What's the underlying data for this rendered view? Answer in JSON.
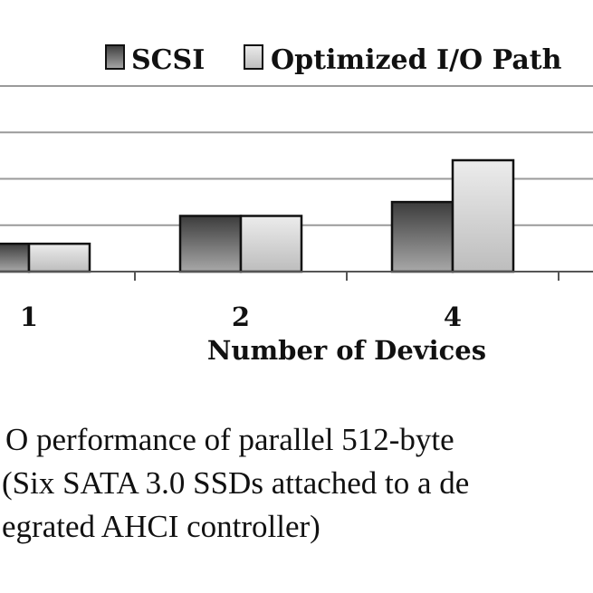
{
  "chart_data": {
    "type": "bar",
    "categories": [
      "1",
      "2",
      "4"
    ],
    "series": [
      {
        "name": "SCSI",
        "values": [
          0.6,
          1.2,
          1.5
        ],
        "color": "#6f6f6f"
      },
      {
        "name": "Optimized I/O Path",
        "values": [
          0.6,
          1.2,
          2.4
        ],
        "color": "#d9d9d9"
      }
    ],
    "xlabel": "Number of Devices",
    "ylim": [
      0,
      4
    ],
    "grid": true,
    "legend": "top"
  },
  "caption": {
    "line1": "O performance of parallel 512-byte",
    "line2": "(Six SATA 3.0 SSDs attached to a de",
    "line3": "egrated AHCI controller)"
  }
}
